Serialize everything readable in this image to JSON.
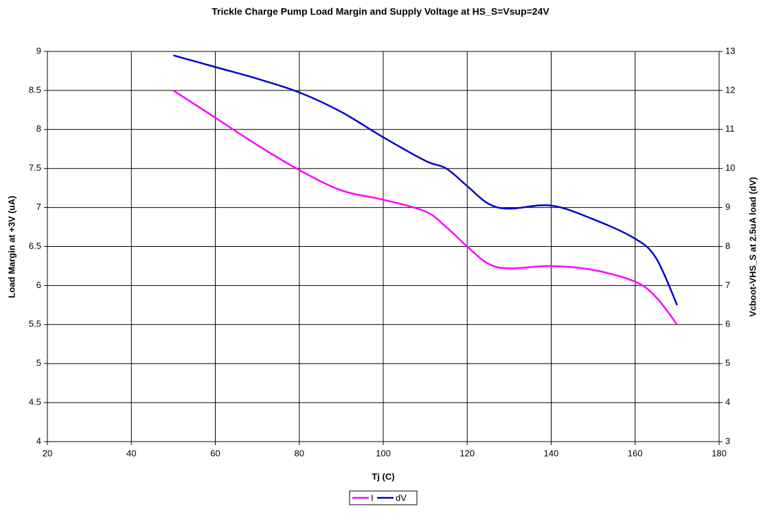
{
  "chart_data": {
    "type": "line",
    "title": "Trickle Charge Pump Load Margin and Supply Voltage at HS_S=Vsup=24V",
    "x_label": "Tj (C)",
    "y_label": "Load Margin at +3V (uA)",
    "y2_label": "Vcboot-VHS_S at 2.5uA load (dV)",
    "x": [
      50,
      60,
      70,
      80,
      90,
      100,
      110,
      115,
      120,
      125,
      130,
      140,
      150,
      160,
      165,
      170
    ],
    "series": [
      {
        "name": "I",
        "color": "#ff00ff",
        "values": [
          8.5,
          8.15,
          7.8,
          7.48,
          7.22,
          7.1,
          6.95,
          6.75,
          6.5,
          6.28,
          6.22,
          6.25,
          6.2,
          6.05,
          5.85,
          5.5
        ]
      },
      {
        "name": "dV",
        "color": "#0000cc",
        "axis": "y2",
        "values": [
          12.9,
          12.6,
          12.3,
          11.95,
          11.45,
          10.8,
          10.2,
          10.0,
          9.55,
          9.1,
          8.97,
          9.05,
          8.7,
          8.2,
          7.7,
          6.5
        ]
      }
    ],
    "xlim": [
      20,
      180
    ],
    "xticks": [
      20,
      40,
      60,
      80,
      100,
      120,
      140,
      160,
      180
    ],
    "ylim": [
      4,
      9
    ],
    "yticks": [
      4,
      4.5,
      5,
      5.5,
      6,
      6.5,
      7,
      7.5,
      8,
      8.5,
      9
    ],
    "y2lim": [
      3,
      13
    ],
    "y2ticks": [
      3,
      4,
      5,
      6,
      7,
      8,
      9,
      10,
      11,
      12,
      13
    ],
    "grid": true,
    "legend": "bottom"
  }
}
